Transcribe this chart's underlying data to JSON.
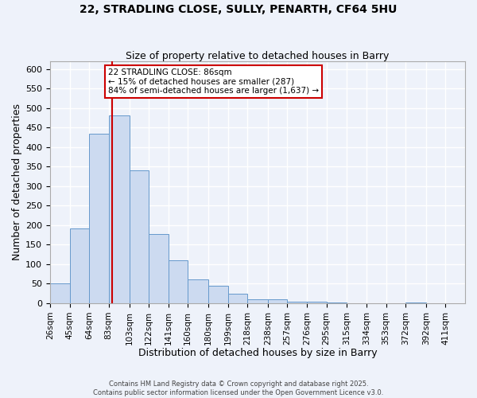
{
  "title1": "22, STRADLING CLOSE, SULLY, PENARTH, CF64 5HU",
  "title2": "Size of property relative to detached houses in Barry",
  "xlabel": "Distribution of detached houses by size in Barry",
  "ylabel": "Number of detached properties",
  "bin_labels": [
    "26sqm",
    "45sqm",
    "64sqm",
    "83sqm",
    "103sqm",
    "122sqm",
    "141sqm",
    "160sqm",
    "180sqm",
    "199sqm",
    "218sqm",
    "238sqm",
    "257sqm",
    "276sqm",
    "295sqm",
    "315sqm",
    "334sqm",
    "353sqm",
    "372sqm",
    "392sqm",
    "411sqm"
  ],
  "bin_edges": [
    26,
    45,
    64,
    83,
    103,
    122,
    141,
    160,
    180,
    199,
    218,
    238,
    257,
    276,
    295,
    315,
    334,
    353,
    372,
    392,
    411
  ],
  "bar_heights": [
    50,
    192,
    435,
    482,
    340,
    178,
    110,
    62,
    45,
    25,
    10,
    10,
    5,
    5,
    3,
    0,
    0,
    0,
    3,
    0,
    0
  ],
  "bar_facecolor": "#ccdaf0",
  "bar_edgecolor": "#6699cc",
  "vline_x": 86,
  "vline_color": "#cc0000",
  "annotation_box_text": "22 STRADLING CLOSE: 86sqm\n← 15% of detached houses are smaller (287)\n84% of semi-detached houses are larger (1,637) →",
  "box_edgecolor": "#cc0000",
  "ylim": [
    0,
    620
  ],
  "yticks": [
    0,
    50,
    100,
    150,
    200,
    250,
    300,
    350,
    400,
    450,
    500,
    550,
    600
  ],
  "background_color": "#eef2fa",
  "grid_color": "#ffffff",
  "footer1": "Contains HM Land Registry data © Crown copyright and database right 2025.",
  "footer2": "Contains public sector information licensed under the Open Government Licence v3.0."
}
